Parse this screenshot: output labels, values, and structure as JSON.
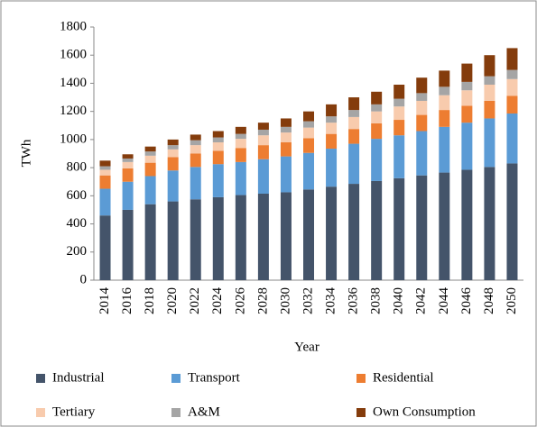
{
  "chart_data": {
    "type": "stacked_bar",
    "ylabel": "TWh",
    "xlabel": "Year",
    "categories": [
      "2014",
      "2016",
      "2018",
      "2020",
      "2022",
      "2024",
      "2026",
      "2028",
      "2030",
      "2032",
      "2034",
      "2036",
      "2038",
      "2040",
      "2042",
      "2044",
      "2046",
      "2048",
      "2050"
    ],
    "series": [
      {
        "name": "Industrial",
        "color": "#44546a",
        "values": [
          460,
          500,
          540,
          560,
          575,
          590,
          605,
          615,
          625,
          645,
          665,
          685,
          705,
          725,
          745,
          765,
          785,
          805,
          830
        ]
      },
      {
        "name": "Transport",
        "color": "#5b9bd5",
        "values": [
          190,
          200,
          200,
          220,
          230,
          235,
          235,
          245,
          255,
          260,
          270,
          285,
          300,
          305,
          315,
          325,
          335,
          345,
          355
        ]
      },
      {
        "name": "Residential",
        "color": "#ed7d31",
        "values": [
          95,
          95,
          95,
          95,
          95,
          95,
          100,
          100,
          100,
          105,
          105,
          105,
          110,
          110,
          115,
          120,
          120,
          125,
          125
        ]
      },
      {
        "name": "Tertiary",
        "color": "#f8cbad",
        "values": [
          40,
          45,
          50,
          55,
          60,
          60,
          65,
          70,
          70,
          75,
          80,
          85,
          85,
          95,
          100,
          105,
          110,
          115,
          120
        ]
      },
      {
        "name": "A&M",
        "color": "#a5a5a5",
        "values": [
          25,
          25,
          30,
          30,
          35,
          35,
          35,
          40,
          40,
          45,
          45,
          50,
          50,
          55,
          55,
          60,
          60,
          60,
          65
        ]
      },
      {
        "name": "Own Consumption",
        "color": "#843c0c",
        "values": [
          40,
          30,
          35,
          40,
          40,
          45,
          50,
          50,
          60,
          70,
          85,
          90,
          90,
          100,
          110,
          115,
          130,
          150,
          155
        ]
      }
    ],
    "ylim": [
      0,
      1800
    ],
    "yticks": [
      0,
      200,
      400,
      600,
      800,
      1000,
      1200,
      1400,
      1600,
      1800
    ],
    "grid": false
  }
}
